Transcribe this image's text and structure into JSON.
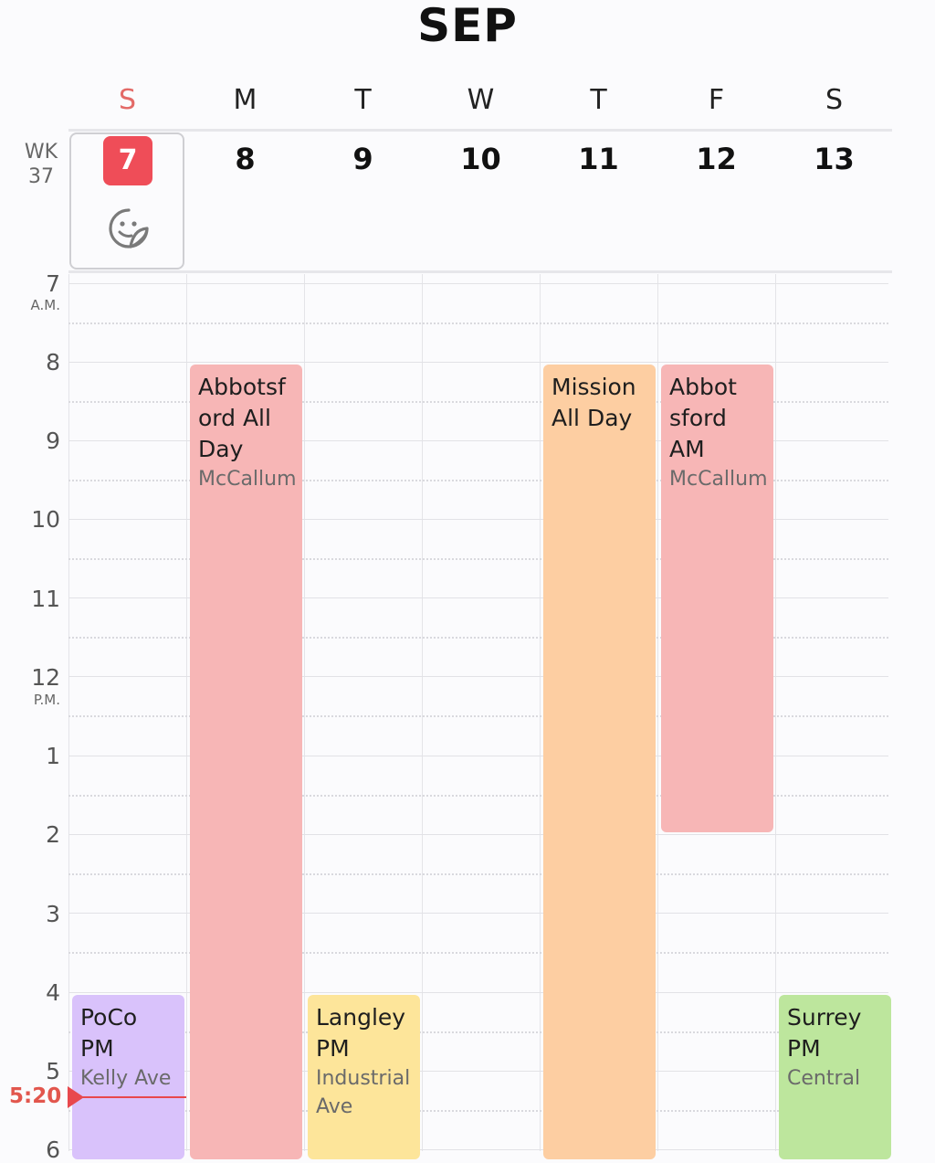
{
  "header": {
    "month": "SEP"
  },
  "week": {
    "label": "WK",
    "number": "37"
  },
  "weekdays": [
    "S",
    "M",
    "T",
    "W",
    "T",
    "F",
    "S"
  ],
  "dates": [
    "7",
    "8",
    "9",
    "10",
    "11",
    "12",
    "13"
  ],
  "today_index": 0,
  "hours": [
    {
      "label": "7",
      "sub": "A.M."
    },
    {
      "label": "8",
      "sub": ""
    },
    {
      "label": "9",
      "sub": ""
    },
    {
      "label": "10",
      "sub": ""
    },
    {
      "label": "11",
      "sub": ""
    },
    {
      "label": "12",
      "sub": "P.M."
    },
    {
      "label": "1",
      "sub": ""
    },
    {
      "label": "2",
      "sub": ""
    },
    {
      "label": "3",
      "sub": ""
    },
    {
      "label": "4",
      "sub": ""
    },
    {
      "label": "5",
      "sub": ""
    },
    {
      "label": "6",
      "sub": ""
    }
  ],
  "current_time": "5:20",
  "events": [
    {
      "title_lines": [
        "PoCo",
        "PM"
      ],
      "location_lines": [
        "Kelly Ave"
      ],
      "color": "#d9c2fb",
      "day": "7",
      "start": "4:00 PM"
    },
    {
      "title_lines": [
        "Abbotsf",
        "ord All",
        "Day"
      ],
      "location_lines": [
        "McCallum"
      ],
      "color": "#f7b6b6",
      "day": "8",
      "start": "8:00 AM"
    },
    {
      "title_lines": [
        "Langley",
        "PM"
      ],
      "location_lines": [
        "Industrial",
        "Ave"
      ],
      "color": "#fde59a",
      "day": "9",
      "start": "4:00 PM"
    },
    {
      "title_lines": [
        "Mission",
        "All Day"
      ],
      "location_lines": [],
      "color": "#fdcea2",
      "day": "11",
      "start": "8:00 AM"
    },
    {
      "title_lines": [
        "Abbot",
        "sford",
        "AM"
      ],
      "location_lines": [
        "McCallum"
      ],
      "color": "#f7b6b6",
      "day": "12",
      "start": "8:00 AM",
      "end": "2:00 PM"
    },
    {
      "title_lines": [
        "Surrey",
        "PM"
      ],
      "location_lines": [
        "Central"
      ],
      "color": "#bde69d",
      "day": "13",
      "start": "4:00 PM"
    }
  ]
}
